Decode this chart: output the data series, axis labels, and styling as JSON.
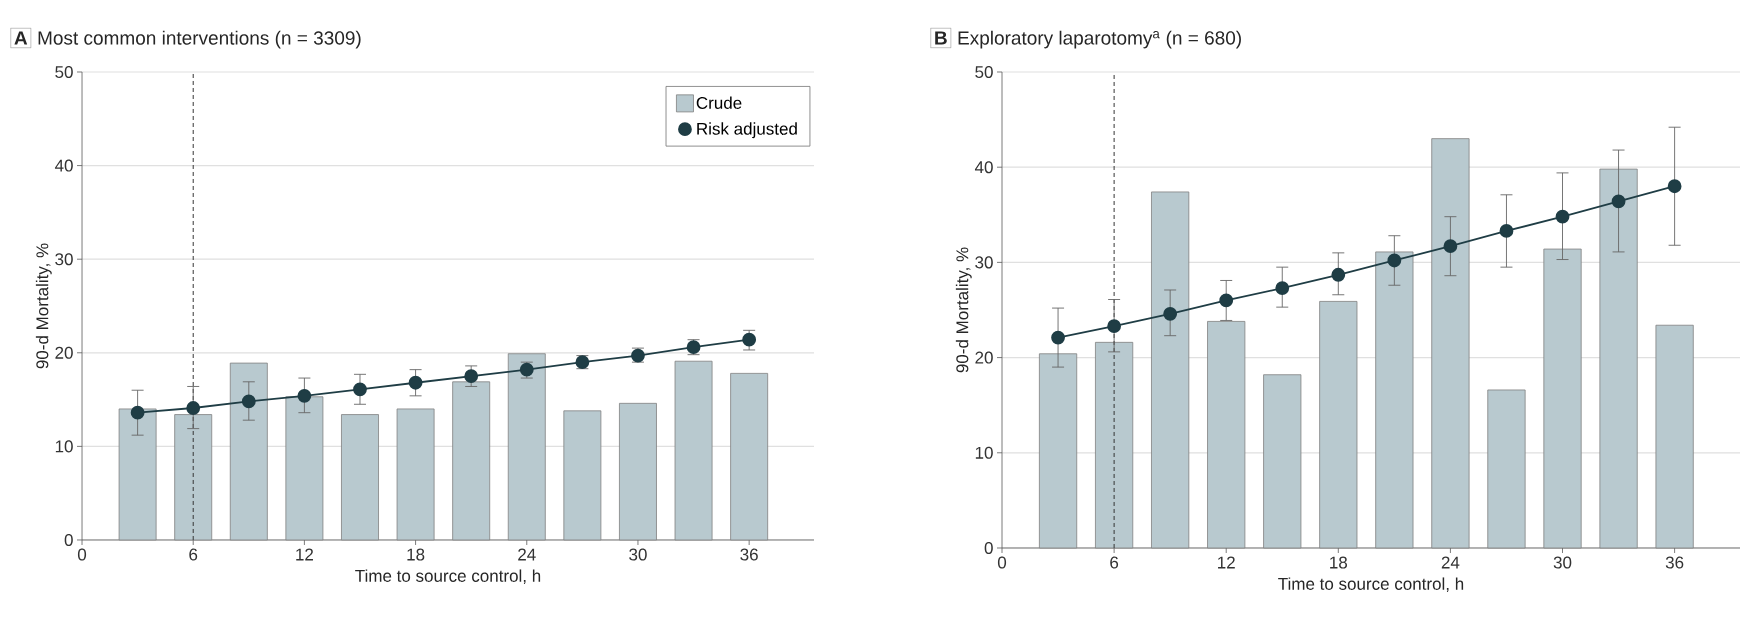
{
  "chart_data": [
    {
      "type": "bar",
      "title": "Most common interventions (n = 3309)",
      "annotations": [
        "A"
      ],
      "xlabel": "Time to source control, h",
      "ylabel": "90-d Mortality, %",
      "x": [
        3,
        6,
        9,
        12,
        15,
        18,
        21,
        24,
        27,
        30,
        33,
        36
      ],
      "xlim": [
        0,
        39.5
      ],
      "xticks": [
        0,
        6,
        12,
        18,
        24,
        30,
        36
      ],
      "ylim": [
        0,
        50
      ],
      "yticks": [
        0,
        10,
        20,
        30,
        40,
        50
      ],
      "grid": "y",
      "legend": "top right",
      "series": [
        {
          "name": "Crude",
          "type": "bar",
          "color": "#b8c9cf",
          "values": [
            14.0,
            13.4,
            18.9,
            15.3,
            13.4,
            14.0,
            16.9,
            19.9,
            13.8,
            14.6,
            19.1,
            17.8
          ]
        },
        {
          "name": "Risk adjusted",
          "type": "line",
          "color": "#1f3d45",
          "marker": "circle",
          "values": [
            13.6,
            14.1,
            14.8,
            15.4,
            16.1,
            16.8,
            17.5,
            18.2,
            19.0,
            19.7,
            20.6,
            21.4
          ],
          "errors": [
            [
              11.2,
              16.0
            ],
            [
              11.9,
              16.4
            ],
            [
              12.8,
              16.9
            ],
            [
              13.6,
              17.3
            ],
            [
              14.5,
              17.7
            ],
            [
              15.4,
              18.2
            ],
            [
              16.4,
              18.6
            ],
            [
              17.3,
              19.0
            ],
            [
              18.3,
              19.7
            ],
            [
              19.0,
              20.5
            ],
            [
              19.8,
              21.4
            ],
            [
              20.3,
              22.4
            ]
          ]
        }
      ],
      "ref_lines": [
        {
          "axis": "x",
          "value": 6,
          "color": "#333333",
          "line_style": "dashed"
        }
      ]
    },
    {
      "type": "bar",
      "title": "Exploratory laparotomy$^{a}$ (n = 680)",
      "annotations": [
        "B"
      ],
      "xlabel": "Time to source control, h",
      "ylabel": "90-d Mortality, %",
      "x": [
        3,
        6,
        9,
        12,
        15,
        18,
        21,
        24,
        27,
        30,
        33,
        36
      ],
      "xlim": [
        0,
        39.5
      ],
      "xticks": [
        0,
        6,
        12,
        18,
        24,
        30,
        36
      ],
      "ylim": [
        0,
        50
      ],
      "yticks": [
        0,
        10,
        20,
        30,
        40,
        50
      ],
      "grid": "y",
      "legend": false,
      "series": [
        {
          "type": "bar",
          "color": "#b8c9cf",
          "values": [
            20.4,
            21.6,
            37.4,
            23.8,
            18.2,
            25.9,
            31.1,
            43.0,
            16.6,
            31.4,
            39.8,
            23.4
          ]
        },
        {
          "type": "line",
          "color": "#1f3d45",
          "marker": "circle",
          "values": [
            22.1,
            23.3,
            24.6,
            26.0,
            27.3,
            28.7,
            30.2,
            31.7,
            33.3,
            34.8,
            36.4,
            38.0
          ],
          "errors": [
            [
              19.0,
              25.2
            ],
            [
              20.6,
              26.1
            ],
            [
              22.3,
              27.1
            ],
            [
              23.9,
              28.1
            ],
            [
              25.3,
              29.5
            ],
            [
              26.6,
              31.0
            ],
            [
              27.6,
              32.8
            ],
            [
              28.6,
              34.8
            ],
            [
              29.5,
              37.1
            ],
            [
              30.3,
              39.4
            ],
            [
              31.1,
              41.8
            ],
            [
              31.8,
              44.2
            ]
          ]
        }
      ],
      "ref_lines": [
        {
          "axis": "x",
          "value": 6,
          "color": "#333333",
          "line_style": "dashed"
        }
      ]
    }
  ]
}
